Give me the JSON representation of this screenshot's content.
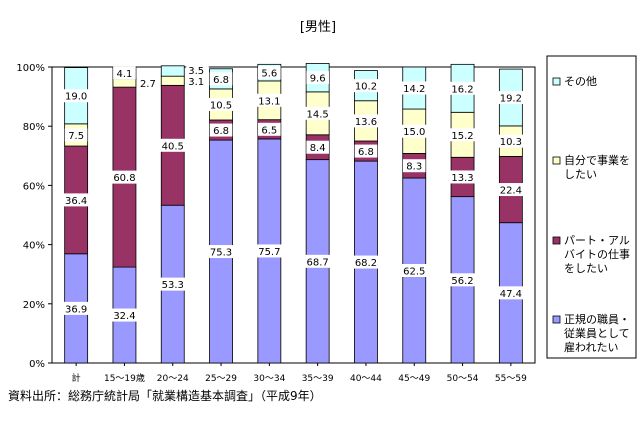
{
  "chart_data": {
    "type": "bar",
    "stacked": true,
    "title": "[男性]",
    "categories": [
      "計",
      "15～19歳",
      "20～24",
      "25～29",
      "30～34",
      "35～39",
      "40～44",
      "45～49",
      "50～54",
      "55～59"
    ],
    "ylim": [
      0,
      100
    ],
    "yticks": [
      "0%",
      "20%",
      "40%",
      "60%",
      "80%",
      "100%"
    ],
    "series": [
      {
        "name": "正規の職員・従業員として雇われたい",
        "color": "#9999ff",
        "values": [
          36.9,
          32.4,
          53.3,
          75.3,
          75.7,
          68.7,
          68.2,
          62.5,
          56.2,
          47.4
        ]
      },
      {
        "name": "パート・アルバイトの仕事をしたい",
        "color": "#993366",
        "values": [
          36.4,
          60.8,
          40.5,
          6.8,
          6.5,
          8.4,
          6.8,
          8.3,
          13.3,
          22.4
        ]
      },
      {
        "name": "自分で事業をしたい",
        "color": "#ffffcc",
        "values": [
          7.5,
          2.7,
          3.1,
          10.5,
          13.1,
          14.5,
          13.6,
          15.0,
          15.2,
          10.3
        ]
      },
      {
        "name": "その他",
        "color": "#ccffff",
        "values": [
          19.0,
          4.1,
          3.5,
          6.8,
          5.6,
          9.6,
          10.2,
          14.2,
          16.2,
          19.2
        ]
      }
    ],
    "legend_items": [
      {
        "lines": [
          "その他"
        ],
        "color": "#ccffff"
      },
      {
        "lines": [
          "自分で事業を",
          "したい"
        ],
        "color": "#ffffcc"
      },
      {
        "lines": [
          "パート・アル",
          "バイトの仕事",
          "をしたい"
        ],
        "color": "#993366"
      },
      {
        "lines": [
          "正規の職員・",
          "従業員として",
          "雇われたい"
        ],
        "color": "#9999ff"
      }
    ],
    "legend_position": "right",
    "source_note": "資料出所：総務庁統計局「就業構造基本調査」（平成9年）"
  }
}
